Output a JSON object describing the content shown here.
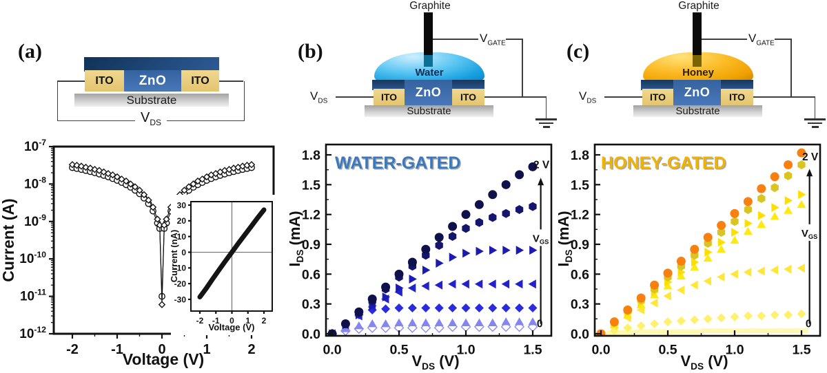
{
  "panel_a": {
    "label": "(a)",
    "schematic": {
      "zno": "ZnO",
      "ito_left": "ITO",
      "ito_right": "ITO",
      "substrate": "Substrate",
      "vds_base": "V",
      "vds_sub": "DS"
    }
  },
  "panel_b": {
    "label": "(b)",
    "schematic": {
      "graphite": "Graphite",
      "liquid": "Water",
      "zno": "ZnO",
      "ito_left": "ITO",
      "ito_right": "ITO",
      "substrate": "Substrate",
      "vds_base": "V",
      "vds_sub": "DS",
      "vgate_base": "V",
      "vgate_sub": "GATE",
      "liquid_color": "#29a9e9",
      "liquid_color_highlight": "#cdefff",
      "liquid_color_deep": "#0c86c8"
    }
  },
  "panel_c": {
    "label": "(c)",
    "schematic": {
      "graphite": "Graphite",
      "liquid": "Honey",
      "zno": "ZnO",
      "ito_left": "ITO",
      "ito_right": "ITO",
      "substrate": "Substrate",
      "vds_base": "V",
      "vds_sub": "DS",
      "vgate_base": "V",
      "vgate_sub": "GATE",
      "liquid_color": "#fbbb26",
      "liquid_color_highlight": "#ffe27a",
      "liquid_color_deep": "#cf8800"
    }
  },
  "chart_data": [
    {
      "id": "iv-sweep",
      "type": "scatter",
      "title": "",
      "xlabel": [
        {
          "t": "Voltage (V)"
        }
      ],
      "ylabel": [
        {
          "t": "Current (A)"
        }
      ],
      "x_ticks": [
        -2,
        -1,
        0,
        1,
        2
      ],
      "x_minor": [
        -1.5,
        -0.5,
        0.5,
        1.5
      ],
      "x_tick_decimals": 0,
      "y_scale": "log",
      "y_ticks_exp": [
        -7,
        -8,
        -9,
        -10,
        -11,
        -12
      ],
      "xlim": [
        -2.42,
        2.49
      ],
      "ylim": [
        1e-12,
        1e-07
      ],
      "grid": false,
      "series": [
        {
          "name": "sweep-open-circles",
          "marker": "circle",
          "open": true,
          "stroke": "#141414",
          "points": [
            [
              -2,
              2.75e-08
            ],
            [
              -1.9,
              2.6e-08
            ],
            [
              -1.8,
              2.45e-08
            ],
            [
              -1.7,
              2.3e-08
            ],
            [
              -1.6,
              2.15e-08
            ],
            [
              -1.5,
              2e-08
            ],
            [
              -1.4,
              1.85e-08
            ],
            [
              -1.3,
              1.7e-08
            ],
            [
              -1.2,
              1.55e-08
            ],
            [
              -1.1,
              1.4e-08
            ],
            [
              -1,
              1.25e-08
            ],
            [
              -0.9,
              1.1e-08
            ],
            [
              -0.8,
              9.6e-09
            ],
            [
              -0.7,
              8.2e-09
            ],
            [
              -0.6,
              6.8e-09
            ],
            [
              -0.5,
              5.5e-09
            ],
            [
              -0.4,
              4.2e-09
            ],
            [
              -0.3,
              3e-09
            ],
            [
              -0.2,
              1.9e-09
            ],
            [
              -0.1,
              9e-10
            ],
            [
              -0.05,
              6.5e-10
            ],
            [
              0,
              1e-11
            ],
            [
              0.05,
              6.5e-10
            ],
            [
              0.1,
              9e-10
            ],
            [
              0.2,
              1.9e-09
            ],
            [
              0.3,
              3e-09
            ],
            [
              0.4,
              4.2e-09
            ],
            [
              0.5,
              5.5e-09
            ],
            [
              0.6,
              6.8e-09
            ],
            [
              0.7,
              8.2e-09
            ],
            [
              0.8,
              9.6e-09
            ],
            [
              0.9,
              1.1e-08
            ],
            [
              1,
              1.25e-08
            ],
            [
              1.1,
              1.4e-08
            ],
            [
              1.2,
              1.55e-08
            ],
            [
              1.3,
              1.7e-08
            ],
            [
              1.4,
              1.85e-08
            ],
            [
              1.5,
              2e-08
            ],
            [
              1.6,
              2.15e-08
            ],
            [
              1.7,
              2.3e-08
            ],
            [
              1.8,
              2.45e-08
            ],
            [
              1.9,
              2.6e-08
            ],
            [
              2,
              2.75e-08
            ]
          ]
        },
        {
          "name": "sweep-open-diamonds",
          "marker": "diamond",
          "open": true,
          "stroke": "#141414",
          "points": [
            [
              -2,
              3.3e-08
            ],
            [
              -1.9,
              3.15e-08
            ],
            [
              -1.8,
              3e-08
            ],
            [
              -1.7,
              2.8e-08
            ],
            [
              -1.6,
              2.65e-08
            ],
            [
              -1.5,
              2.45e-08
            ],
            [
              -1.4,
              2.3e-08
            ],
            [
              -1.3,
              2.1e-08
            ],
            [
              -1.2,
              1.9e-08
            ],
            [
              -1.1,
              1.75e-08
            ],
            [
              -1,
              1.55e-08
            ],
            [
              -0.9,
              1.35e-08
            ],
            [
              -0.8,
              1.2e-08
            ],
            [
              -0.7,
              1e-08
            ],
            [
              -0.6,
              8.4e-09
            ],
            [
              -0.5,
              6.8e-09
            ],
            [
              -0.4,
              5.2e-09
            ],
            [
              -0.3,
              3.7e-09
            ],
            [
              -0.2,
              2.4e-09
            ],
            [
              -0.1,
              1.15e-09
            ],
            [
              -0.05,
              8e-10
            ],
            [
              0,
              6e-12
            ],
            [
              0.05,
              8e-10
            ],
            [
              0.1,
              1.15e-09
            ],
            [
              0.2,
              2.4e-09
            ],
            [
              0.3,
              3.7e-09
            ],
            [
              0.4,
              5.2e-09
            ],
            [
              0.5,
              6.8e-09
            ],
            [
              0.6,
              8.4e-09
            ],
            [
              0.7,
              1e-08
            ],
            [
              0.8,
              1.2e-08
            ],
            [
              0.9,
              1.35e-08
            ],
            [
              1,
              1.55e-08
            ],
            [
              1.1,
              1.75e-08
            ],
            [
              1.2,
              1.9e-08
            ],
            [
              1.3,
              2.1e-08
            ],
            [
              1.4,
              2.3e-08
            ],
            [
              1.5,
              2.45e-08
            ],
            [
              1.6,
              2.65e-08
            ],
            [
              1.7,
              2.8e-08
            ],
            [
              1.8,
              3e-08
            ],
            [
              1.9,
              3.15e-08
            ],
            [
              2,
              3.3e-08
            ]
          ]
        }
      ]
    },
    {
      "id": "iv-inset",
      "type": "line",
      "xlabel": [
        {
          "t": "Voltage (V)"
        }
      ],
      "ylabel": [
        {
          "t": "Current (nA)"
        }
      ],
      "x_ticks": [
        -2,
        -1,
        0,
        1,
        2
      ],
      "y_ticks": [
        30,
        20,
        10,
        0,
        -10,
        -20,
        -30
      ],
      "x_tick_decimals": 0,
      "y_tick_decimals": 0,
      "xlim": [
        -2.5,
        2.5
      ],
      "ylim": [
        -37,
        33
      ],
      "zero_lines": true,
      "series": [
        {
          "name": "linear-iv-band",
          "stroke": "#141414",
          "line_width": 7,
          "points": [
            [
              -2,
              -28.5
            ],
            [
              -1.6,
              -23
            ],
            [
              -1.2,
              -17
            ],
            [
              -0.8,
              -11.2
            ],
            [
              -0.4,
              -5.5
            ],
            [
              0,
              0
            ],
            [
              0.4,
              5.6
            ],
            [
              0.8,
              11
            ],
            [
              1.2,
              16.4
            ],
            [
              1.6,
              21.8
            ],
            [
              2,
              27
            ]
          ]
        }
      ]
    },
    {
      "id": "water-gated",
      "type": "scatter",
      "annotation": "WATER-GATED",
      "annotation_color": "#3b79bd",
      "xlabel": [
        {
          "t": "V"
        },
        {
          "t": "DS",
          "sub": true
        },
        {
          "t": " (V)"
        }
      ],
      "ylabel": [
        {
          "t": "I"
        },
        {
          "t": "DS",
          "sub": true
        },
        {
          "t": " (mA)"
        }
      ],
      "x_ticks": [
        0,
        0.5,
        1,
        1.5
      ],
      "x_minor": [
        0.25,
        0.75,
        1.25
      ],
      "x_tick_decimals": 1,
      "y_ticks": [
        0,
        0.3,
        0.6,
        0.9,
        1.2,
        1.5,
        1.8
      ],
      "y_minor": [
        0.15,
        0.45,
        0.75,
        1.05,
        1.35,
        1.65
      ],
      "y_tick_decimals": 1,
      "xlim": [
        -0.05,
        1.64
      ],
      "ylim": [
        -0.02,
        1.92
      ],
      "gate_arrow": {
        "x": 1.56,
        "y_top": 1.57,
        "y_bottom": 0.1,
        "label": [
          {
            "t": "V"
          },
          {
            "t": "GS",
            "sub": true
          }
        ],
        "top_label": "2 V",
        "top_label_at": [
          1.505,
          1.7
        ],
        "bottom_label": "0",
        "bottom_label_at": [
          1.53,
          0.1
        ]
      },
      "x": [
        0,
        0.1,
        0.2,
        0.3,
        0.4,
        0.5,
        0.6,
        0.7,
        0.8,
        0.9,
        1.0,
        1.1,
        1.2,
        1.3,
        1.4,
        1.5
      ],
      "series": [
        {
          "name": "VGS-level-1-of-7-0V",
          "marker": "diamond",
          "open": true,
          "stroke": "#8d8df0",
          "y": [
            0,
            0.03,
            0.05,
            0.06,
            0.06,
            0.06,
            0.06,
            0.06,
            0.06,
            0.07,
            0.07,
            0.07,
            0.07,
            0.07,
            0.07,
            0.07
          ]
        },
        {
          "name": "VGS-level-2-of-7",
          "marker": "triangle-up",
          "color": "#8585ef",
          "y": [
            0,
            0.05,
            0.08,
            0.1,
            0.1,
            0.11,
            0.11,
            0.11,
            0.11,
            0.11,
            0.11,
            0.11,
            0.11,
            0.12,
            0.12,
            0.12
          ]
        },
        {
          "name": "VGS-level-3-of-7",
          "marker": "diamond",
          "color": "#2a2ae0",
          "y": [
            0,
            0.1,
            0.19,
            0.24,
            0.25,
            0.26,
            0.26,
            0.26,
            0.26,
            0.26,
            0.26,
            0.26,
            0.26,
            0.26,
            0.26,
            0.26
          ]
        },
        {
          "name": "VGS-level-4-of-7",
          "marker": "triangle-left",
          "color": "#2222cc",
          "y": [
            0,
            0.09,
            0.18,
            0.27,
            0.35,
            0.42,
            0.46,
            0.48,
            0.49,
            0.5,
            0.5,
            0.5,
            0.5,
            0.5,
            0.5,
            0.5
          ]
        },
        {
          "name": "VGS-level-5-of-7",
          "marker": "triangle-right",
          "color": "#1b1bb0",
          "y": [
            0,
            0.09,
            0.19,
            0.28,
            0.37,
            0.46,
            0.55,
            0.64,
            0.71,
            0.77,
            0.81,
            0.83,
            0.84,
            0.84,
            0.84,
            0.84
          ]
        },
        {
          "name": "VGS-level-6-of-7",
          "marker": "hexagon",
          "color": "#15156e",
          "y": [
            0,
            0.1,
            0.21,
            0.33,
            0.45,
            0.57,
            0.68,
            0.79,
            0.89,
            0.98,
            1.06,
            1.12,
            1.17,
            1.21,
            1.25,
            1.28
          ]
        },
        {
          "name": "VGS-level-7-of-7-2V",
          "marker": "circle",
          "color": "#10104a",
          "y": [
            0,
            0.1,
            0.22,
            0.35,
            0.47,
            0.6,
            0.72,
            0.85,
            0.97,
            1.08,
            1.2,
            1.3,
            1.4,
            1.5,
            1.6,
            1.68
          ]
        }
      ]
    },
    {
      "id": "honey-gated",
      "type": "scatter",
      "annotation": "HONEY-GATED",
      "annotation_color": "#f2b200",
      "xlabel": [
        {
          "t": "V"
        },
        {
          "t": "DS",
          "sub": true
        },
        {
          "t": " (V)"
        }
      ],
      "ylabel": [
        {
          "t": "I"
        },
        {
          "t": "DS",
          "sub": true
        },
        {
          "t": " (mA)"
        }
      ],
      "x_ticks": [
        0,
        0.5,
        1,
        1.5
      ],
      "x_minor": [
        0.25,
        0.75,
        1.25
      ],
      "x_tick_decimals": 1,
      "y_ticks": [
        0,
        0.3,
        0.6,
        0.9,
        1.2,
        1.5,
        1.8
      ],
      "y_minor": [
        0.15,
        0.45,
        0.75,
        1.05,
        1.35,
        1.65
      ],
      "y_tick_decimals": 1,
      "xlim": [
        -0.05,
        1.64
      ],
      "ylim": [
        -0.02,
        1.92
      ],
      "gate_arrow": {
        "x": 1.56,
        "y_top": 1.66,
        "y_bottom": 0.1,
        "label": [
          {
            "t": "V"
          },
          {
            "t": "GS",
            "sub": true
          }
        ],
        "top_label": "2 V",
        "top_label_at": [
          1.505,
          1.78
        ],
        "bottom_label": "0",
        "bottom_label_at": [
          1.53,
          0.1
        ]
      },
      "x": [
        0,
        0.1,
        0.2,
        0.3,
        0.4,
        0.5,
        0.6,
        0.7,
        0.8,
        0.9,
        1.0,
        1.1,
        1.2,
        1.3,
        1.4,
        1.5
      ],
      "series": [
        {
          "name": "VGS-level-1-of-7-0V",
          "marker": "square",
          "color": "#fff9b0",
          "y": [
            0,
            0.01,
            0.01,
            0.02,
            0.02,
            0.02,
            0.02,
            0.02,
            0.03,
            0.03,
            0.03,
            0.03,
            0.03,
            0.03,
            0.03,
            0.03
          ]
        },
        {
          "name": "VGS-level-2-of-7",
          "marker": "diamond",
          "color": "#fff06e",
          "y": [
            0,
            0.03,
            0.06,
            0.08,
            0.1,
            0.12,
            0.13,
            0.14,
            0.15,
            0.16,
            0.17,
            0.18,
            0.18,
            0.19,
            0.19,
            0.2
          ]
        },
        {
          "name": "VGS-level-3-of-7",
          "marker": "triangle-left",
          "color": "#ffe637",
          "y": [
            0,
            0.08,
            0.16,
            0.24,
            0.31,
            0.38,
            0.44,
            0.49,
            0.53,
            0.57,
            0.6,
            0.62,
            0.63,
            0.64,
            0.65,
            0.66
          ]
        },
        {
          "name": "VGS-level-4-of-7",
          "marker": "triangle-up",
          "color": "#ffe912",
          "y": [
            0,
            0.09,
            0.19,
            0.29,
            0.39,
            0.48,
            0.58,
            0.67,
            0.76,
            0.85,
            0.94,
            1.03,
            1.1,
            1.18,
            1.24,
            1.3
          ]
        },
        {
          "name": "VGS-level-5-of-7",
          "marker": "triangle-right",
          "color": "#ffdf00",
          "y": [
            0,
            0.1,
            0.21,
            0.31,
            0.42,
            0.52,
            0.62,
            0.72,
            0.82,
            0.92,
            1.02,
            1.11,
            1.19,
            1.27,
            1.34,
            1.4
          ]
        },
        {
          "name": "VGS-level-6-of-7",
          "marker": "hexagon",
          "color": "#d8c523",
          "y": [
            0,
            0.11,
            0.23,
            0.34,
            0.45,
            0.57,
            0.68,
            0.79,
            0.91,
            1.02,
            1.13,
            1.25,
            1.36,
            1.47,
            1.59,
            1.7
          ]
        },
        {
          "name": "VGS-level-7-of-7-2V",
          "marker": "circle",
          "color": "#f88010",
          "y": [
            0,
            0.12,
            0.24,
            0.36,
            0.49,
            0.61,
            0.73,
            0.85,
            0.97,
            1.09,
            1.21,
            1.33,
            1.46,
            1.58,
            1.7,
            1.82
          ]
        }
      ]
    }
  ]
}
